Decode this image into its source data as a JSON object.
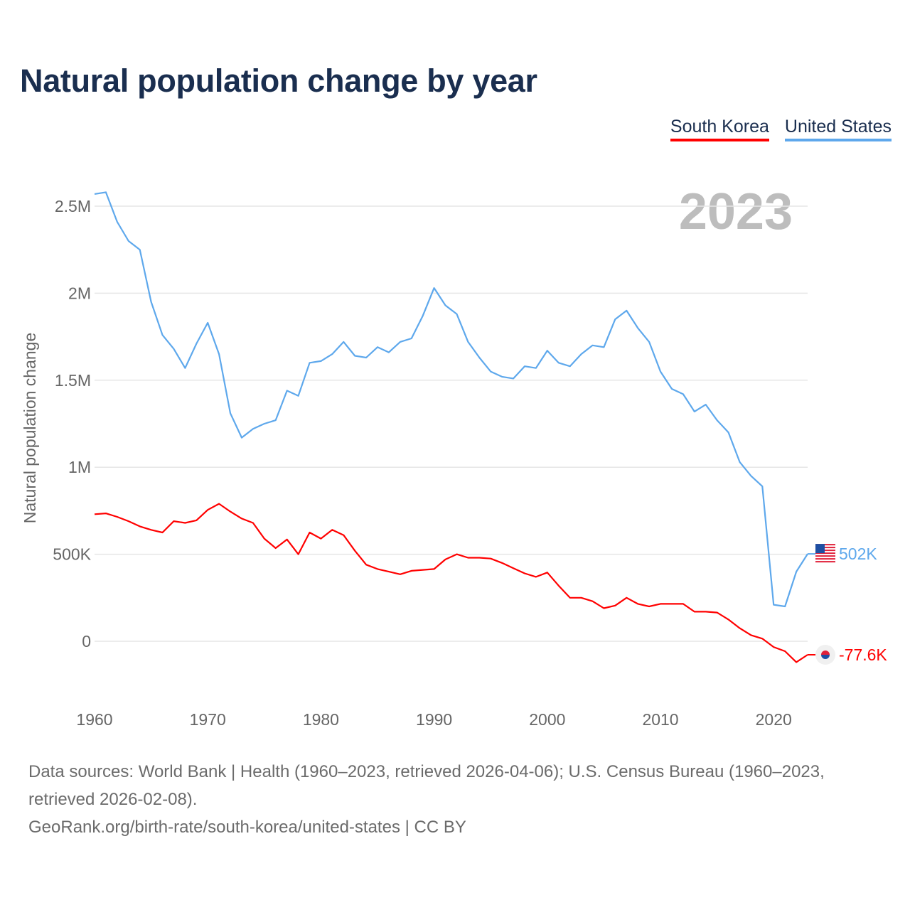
{
  "chart_data": {
    "type": "line",
    "title": "Natural population change by year",
    "xlabel": "",
    "ylabel": "Natural population change",
    "year_label": "2023",
    "xlim": [
      1960,
      2023
    ],
    "ylim": [
      -200000,
      2600000
    ],
    "x_ticks": [
      1960,
      1970,
      1980,
      1990,
      2000,
      2010,
      2020
    ],
    "y_ticks": [
      0,
      500000,
      1000000,
      1500000,
      2000000,
      2500000
    ],
    "y_tick_labels": [
      "0",
      "500K",
      "1M",
      "1.5M",
      "2M",
      "2.5M"
    ],
    "grid": true,
    "legend_position": "top-right",
    "x": [
      1960,
      1961,
      1962,
      1963,
      1964,
      1965,
      1966,
      1967,
      1968,
      1969,
      1970,
      1971,
      1972,
      1973,
      1974,
      1975,
      1976,
      1977,
      1978,
      1979,
      1980,
      1981,
      1982,
      1983,
      1984,
      1985,
      1986,
      1987,
      1988,
      1989,
      1990,
      1991,
      1992,
      1993,
      1994,
      1995,
      1996,
      1997,
      1998,
      1999,
      2000,
      2001,
      2002,
      2003,
      2004,
      2005,
      2006,
      2007,
      2008,
      2009,
      2010,
      2011,
      2012,
      2013,
      2014,
      2015,
      2016,
      2017,
      2018,
      2019,
      2020,
      2021,
      2022,
      2023
    ],
    "series": [
      {
        "name": "South Korea",
        "color": "#ff0000",
        "end_label": "-77.6K",
        "values": [
          730000,
          735000,
          715000,
          690000,
          660000,
          640000,
          625000,
          690000,
          680000,
          695000,
          755000,
          790000,
          745000,
          705000,
          680000,
          590000,
          535000,
          585000,
          500000,
          625000,
          590000,
          640000,
          610000,
          520000,
          440000,
          415000,
          400000,
          385000,
          405000,
          410000,
          415000,
          470000,
          500000,
          480000,
          480000,
          475000,
          450000,
          420000,
          390000,
          370000,
          395000,
          320000,
          250000,
          250000,
          230000,
          190000,
          205000,
          250000,
          215000,
          200000,
          215000,
          215000,
          215000,
          170000,
          170000,
          165000,
          125000,
          75000,
          35000,
          15000,
          -33000,
          -57000,
          -120000,
          -77600
        ]
      },
      {
        "name": "United States",
        "color": "#5ea8ec",
        "end_label": "502K",
        "values": [
          2570000,
          2580000,
          2410000,
          2300000,
          2250000,
          1950000,
          1760000,
          1680000,
          1570000,
          1710000,
          1830000,
          1650000,
          1310000,
          1170000,
          1220000,
          1250000,
          1270000,
          1440000,
          1410000,
          1600000,
          1610000,
          1650000,
          1720000,
          1640000,
          1630000,
          1690000,
          1660000,
          1720000,
          1740000,
          1870000,
          2030000,
          1930000,
          1880000,
          1720000,
          1630000,
          1550000,
          1520000,
          1510000,
          1580000,
          1570000,
          1670000,
          1600000,
          1580000,
          1650000,
          1700000,
          1690000,
          1850000,
          1900000,
          1800000,
          1720000,
          1550000,
          1450000,
          1420000,
          1320000,
          1360000,
          1270000,
          1200000,
          1030000,
          950000,
          890000,
          210000,
          200000,
          400000,
          502000
        ]
      }
    ]
  },
  "footer": {
    "sources": "Data sources: World Bank | Health (1960–2023, retrieved 2026-04-06); U.S. Census Bureau (1960–2023, retrieved 2026-02-08).",
    "link": "GeoRank.org/birth-rate/south-korea/united-states | CC BY"
  }
}
